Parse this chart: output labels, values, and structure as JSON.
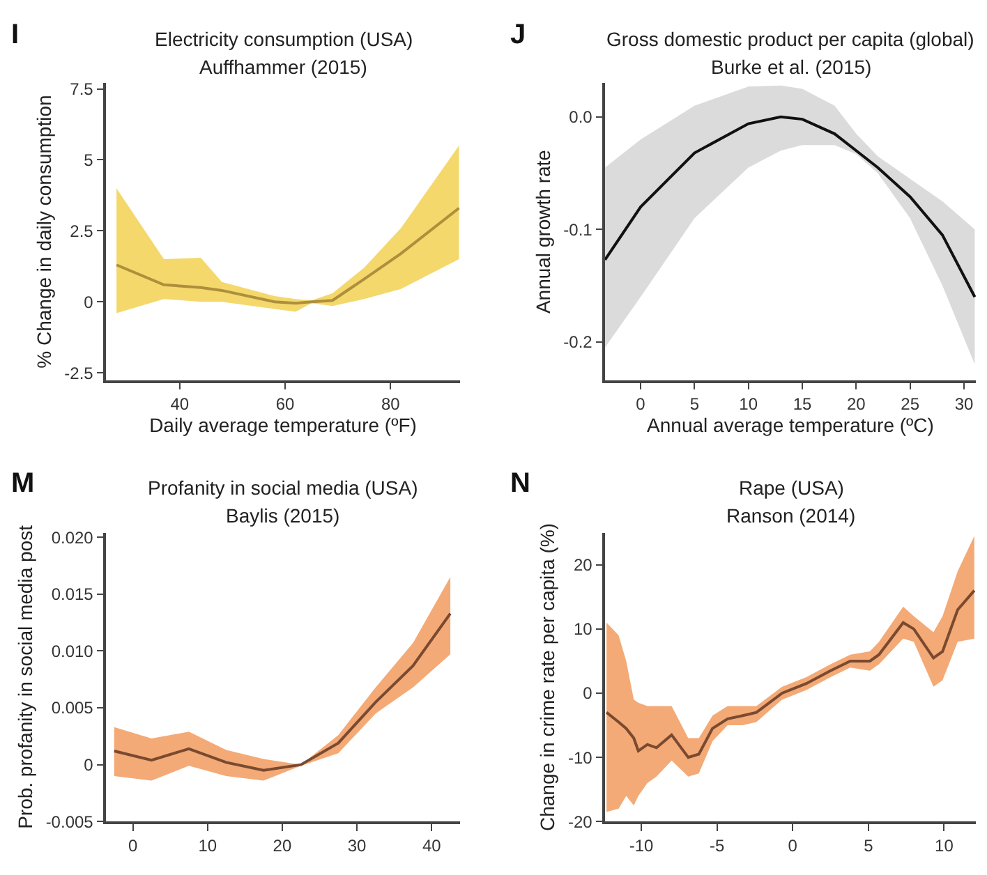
{
  "chart_data": [
    {
      "type": "line",
      "title": "Electricity consumption (USA)",
      "subtitle": "Auffhammer (2015)",
      "xlabel": "Daily average temperature (ºF)",
      "ylabel": "% Change in daily consumption",
      "annotations": [
        "I"
      ],
      "x": [
        28,
        37,
        44,
        48,
        58,
        62,
        65,
        69,
        75,
        82,
        93
      ],
      "series": [
        {
          "color": "#ad8f3c",
          "values": [
            1.3,
            0.6,
            0.5,
            0.4,
            0.0,
            -0.05,
            0.0,
            0.05,
            0.8,
            1.7,
            3.3
          ],
          "lower": [
            -0.4,
            0.1,
            0.0,
            0.0,
            -0.25,
            -0.35,
            -0.05,
            -0.15,
            0.1,
            0.45,
            1.5
          ],
          "upper": [
            4.0,
            1.5,
            1.55,
            0.7,
            0.2,
            0.1,
            0.05,
            0.3,
            1.2,
            2.6,
            5.5
          ]
        }
      ],
      "xlim": [
        26,
        93.2
      ],
      "ylim": [
        -2.76,
        7.7
      ],
      "xticks": [
        40,
        60,
        80
      ],
      "yticks": [
        7.5,
        5,
        2.5,
        0,
        -2.5
      ],
      "grid": false
    },
    {
      "type": "line",
      "title": "Gross domestic product per capita (global)",
      "subtitle": "Burke et al. (2015)",
      "xlabel": "Annual average temperature (ºC)",
      "ylabel": "Annual growth rate",
      "annotations": [
        "J"
      ],
      "x": [
        -3.3,
        0,
        5,
        10,
        13,
        15,
        18,
        20,
        22,
        25,
        28,
        31
      ],
      "series": [
        {
          "color": "#111111",
          "values": [
            -0.127,
            -0.08,
            -0.032,
            -0.006,
            0.0,
            -0.002,
            -0.015,
            -0.03,
            -0.045,
            -0.071,
            -0.105,
            -0.16
          ],
          "lower": [
            -0.205,
            -0.16,
            -0.09,
            -0.045,
            -0.03,
            -0.025,
            -0.025,
            -0.033,
            -0.05,
            -0.09,
            -0.15,
            -0.22
          ],
          "upper": [
            -0.045,
            -0.02,
            0.01,
            0.027,
            0.028,
            0.025,
            0.01,
            -0.015,
            -0.035,
            -0.055,
            -0.075,
            -0.1
          ]
        }
      ],
      "xlim": [
        -3.3,
        31.1
      ],
      "ylim": [
        -0.234,
        0.03
      ],
      "xticks": [
        0,
        5,
        10,
        15,
        20,
        25,
        30
      ],
      "yticks": [
        {
          "value": 0,
          "label": "0.0"
        },
        -0.1,
        -0.2
      ],
      "grid": false
    },
    {
      "type": "line",
      "title": "Profanity in social media (USA)",
      "subtitle": "Baylis (2015)",
      "ylabel": "Prob. profanity in social media post",
      "annotations": [
        "M"
      ],
      "x": [
        -2.5,
        2.5,
        7.5,
        12.5,
        17.5,
        22.5,
        27.5,
        32.5,
        37.5,
        42.5
      ],
      "series": [
        {
          "color": "#7a4a30",
          "values": [
            0.0012,
            0.0004,
            0.0014,
            0.0002,
            -0.0005,
            0.0,
            0.0019,
            0.0055,
            0.0087,
            0.0133
          ],
          "lower": [
            -0.001,
            -0.0014,
            -0.0001,
            -0.001,
            -0.0014,
            -0.0001,
            0.001,
            0.0045,
            0.0068,
            0.0097
          ],
          "upper": [
            0.0033,
            0.0023,
            0.0029,
            0.0013,
            0.0005,
            0.0,
            0.0026,
            0.0068,
            0.0107,
            0.0165
          ]
        }
      ],
      "xlim": [
        -3.6,
        43.8
      ],
      "ylim": [
        -0.005,
        0.0204
      ],
      "xticks": [
        0,
        10,
        20,
        30,
        40
      ],
      "yticks": [
        {
          "value": 0.02,
          "label": "0.020"
        },
        0.015,
        {
          "value": 0.01,
          "label": "0.010"
        },
        0.005,
        0,
        -0.005
      ],
      "grid": false
    },
    {
      "type": "line",
      "title": "Rape (USA)",
      "subtitle": "Ranson (2014)",
      "ylabel": "Change in crime rate per capita (%)",
      "annotations": [
        "N"
      ],
      "x": [
        -12.3,
        -11.5,
        -11,
        -10.5,
        -10.2,
        -9.6,
        -9,
        -8,
        -6.9,
        -6.2,
        -5.3,
        -4.3,
        -3.3,
        -2.4,
        -0.7,
        0.9,
        2.5,
        3.8,
        5.1,
        5.7,
        7.3,
        8,
        9.3,
        9.9,
        10.9,
        12
      ],
      "series": [
        {
          "color": "#7a4a30",
          "values": [
            -3,
            -4.5,
            -5.5,
            -7,
            -9,
            -8,
            -8.5,
            -6.5,
            -10,
            -9.5,
            -5.5,
            -4,
            -3.5,
            -3,
            0,
            1.5,
            3.5,
            5,
            5,
            6,
            11,
            10,
            5.5,
            6.5,
            13,
            16
          ],
          "lower": [
            -18.5,
            -18,
            -16,
            -17.5,
            -16,
            -14,
            -13,
            -10.5,
            -13,
            -12.5,
            -7.5,
            -5,
            -5,
            -4.5,
            -1,
            0.5,
            2.5,
            4,
            3.5,
            4.5,
            8.5,
            8,
            1,
            2,
            8,
            8.5
          ],
          "upper": [
            11,
            9,
            5,
            -1,
            -1.5,
            -2,
            -2,
            -2,
            -7,
            -7,
            -3.5,
            -2,
            -2,
            -2,
            1,
            2.5,
            4.5,
            6,
            6.5,
            8,
            13.5,
            12,
            9.5,
            12,
            19,
            24.5
          ]
        }
      ],
      "xlim": [
        -12.4,
        12.1
      ],
      "ylim": [
        -20,
        25
      ],
      "xticks": [
        -10,
        -5,
        0,
        5,
        10
      ],
      "yticks": [
        20,
        10,
        0,
        -10,
        -20
      ],
      "grid": false
    }
  ]
}
